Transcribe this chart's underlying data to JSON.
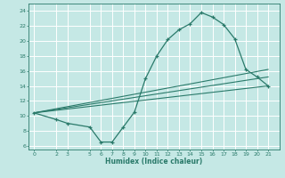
{
  "xlabel": "Humidex (Indice chaleur)",
  "bg_color": "#c5e8e5",
  "grid_color": "#b0d8d5",
  "line_color": "#2a7a6a",
  "xlim": [
    -0.5,
    22
  ],
  "ylim": [
    5.5,
    25
  ],
  "xticks": [
    0,
    2,
    3,
    5,
    6,
    7,
    8,
    9,
    10,
    11,
    12,
    13,
    14,
    15,
    16,
    17,
    18,
    19,
    20,
    21
  ],
  "yticks": [
    6,
    8,
    10,
    12,
    14,
    16,
    18,
    20,
    22,
    24
  ],
  "main_x": [
    0,
    2,
    3,
    5,
    6,
    7,
    8,
    9,
    10,
    11,
    12,
    13,
    14,
    15,
    16,
    17,
    18,
    19,
    20,
    21
  ],
  "main_y": [
    10.4,
    9.5,
    9.0,
    8.5,
    6.5,
    6.5,
    8.5,
    10.5,
    15.0,
    18.0,
    20.2,
    21.5,
    22.3,
    23.8,
    23.2,
    22.2,
    20.3,
    16.2,
    15.2,
    14.0
  ],
  "line2_x": [
    0,
    21
  ],
  "line2_y": [
    10.4,
    16.2
  ],
  "line3_x": [
    0,
    21
  ],
  "line3_y": [
    10.4,
    15.2
  ],
  "line4_x": [
    0,
    21
  ],
  "line4_y": [
    10.4,
    14.0
  ]
}
